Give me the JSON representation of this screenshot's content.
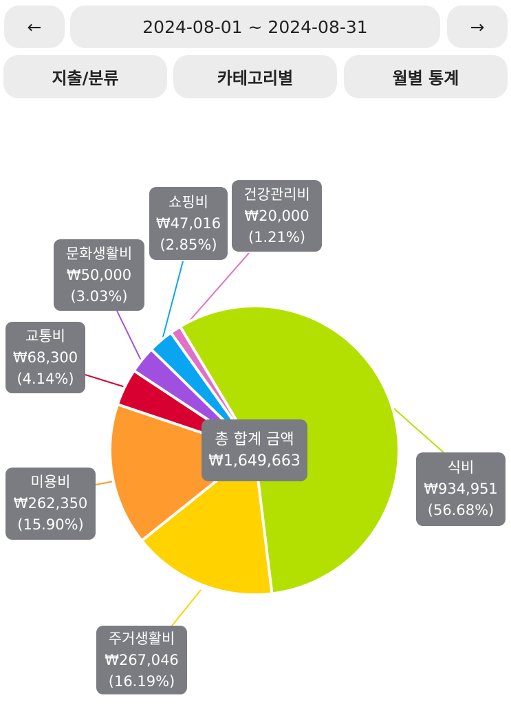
{
  "nav": {
    "prev": "←",
    "next": "→",
    "range": "2024-08-01 ~ 2024-08-31"
  },
  "tabs": [
    {
      "label": "지출/분류"
    },
    {
      "label": "카테고리별"
    },
    {
      "label": "월별 통계"
    }
  ],
  "center": {
    "title": "총 합계 금액",
    "total": "₩1,649,663"
  },
  "chart_data": {
    "type": "pie",
    "start_angle_deg": -31,
    "direction": "clockwise",
    "slices": [
      {
        "name": "식비",
        "amount": "₩934,951",
        "percent_label": "(56.68%)",
        "value": 934951,
        "percent": 56.68,
        "color": "#b3e000"
      },
      {
        "name": "주거생활비",
        "amount": "₩267,046",
        "percent_label": "(16.19%)",
        "value": 267046,
        "percent": 16.19,
        "color": "#ffd200"
      },
      {
        "name": "미용비",
        "amount": "₩262,350",
        "percent_label": "(15.90%)",
        "value": 262350,
        "percent": 15.9,
        "color": "#ff9a2e"
      },
      {
        "name": "교통비",
        "amount": "₩68,300",
        "percent_label": "(4.14%)",
        "value": 68300,
        "percent": 4.14,
        "color": "#d80030"
      },
      {
        "name": "문화생활비",
        "amount": "₩50,000",
        "percent_label": "(3.03%)",
        "value": 50000,
        "percent": 3.03,
        "color": "#a050e0"
      },
      {
        "name": "쇼핑비",
        "amount": "₩47,016",
        "percent_label": "(2.85%)",
        "value": 47016,
        "percent": 2.85,
        "color": "#0aa5f0"
      },
      {
        "name": "건강관리비",
        "amount": "₩20,000",
        "percent_label": "(1.21%)",
        "value": 20000,
        "percent": 1.21,
        "color": "#e070c8"
      }
    ]
  }
}
